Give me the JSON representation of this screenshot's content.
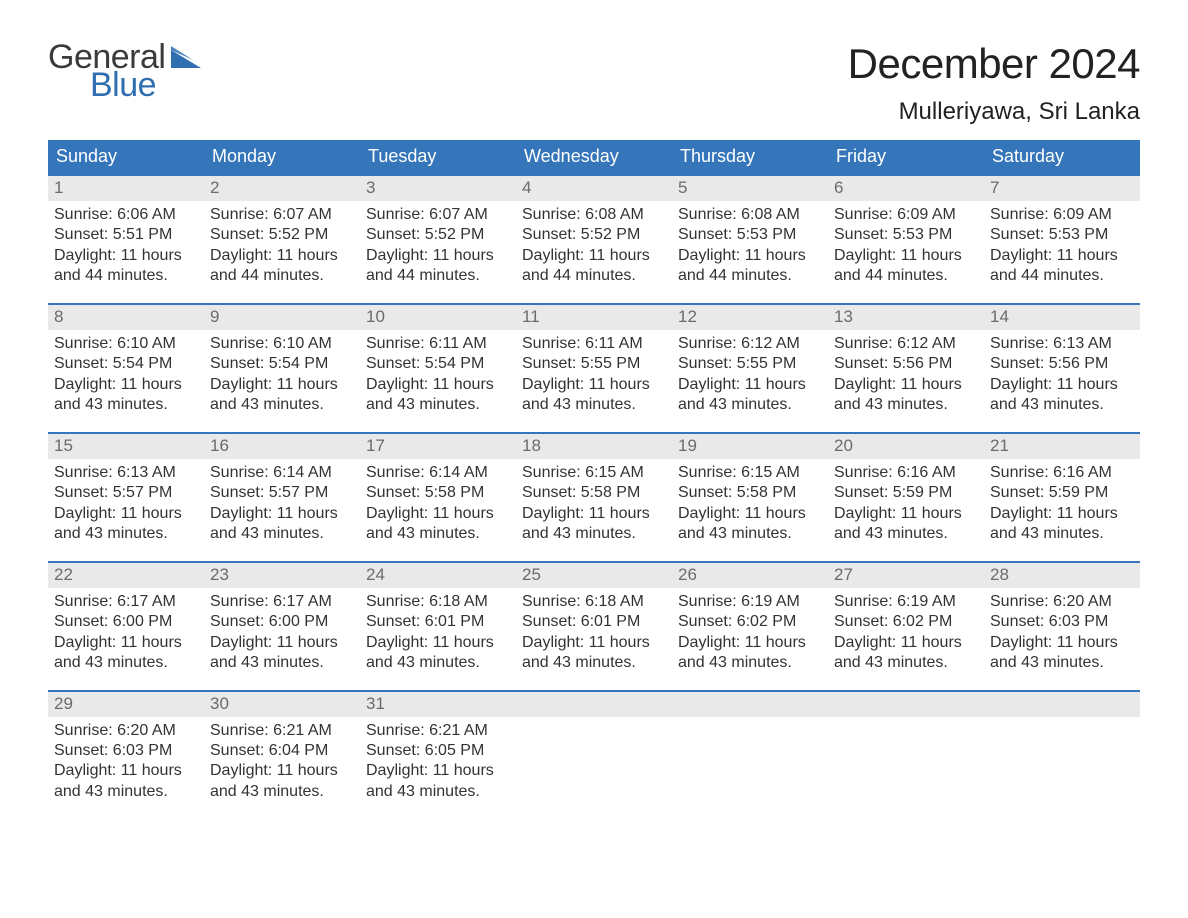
{
  "brand": {
    "word1": "General",
    "word2": "Blue",
    "flag_color": "#2f6fb0"
  },
  "header": {
    "month_title": "December 2024",
    "location": "Mulleriyawa, Sri Lanka"
  },
  "theme": {
    "header_bg": "#3576ba",
    "header_text": "#ffffff",
    "daynum_bg": "#e9e9e9",
    "daynum_text": "#6b6b6b",
    "body_text": "#333333",
    "week_border": "#3576ba",
    "page_bg": "#ffffff"
  },
  "weekdays": [
    "Sunday",
    "Monday",
    "Tuesday",
    "Wednesday",
    "Thursday",
    "Friday",
    "Saturday"
  ],
  "labels": {
    "sunrise": "Sunrise:",
    "sunset": "Sunset:",
    "daylight": "Daylight:"
  },
  "days": [
    {
      "n": 1,
      "sunrise": "6:06 AM",
      "sunset": "5:51 PM",
      "daylight": "11 hours and 44 minutes."
    },
    {
      "n": 2,
      "sunrise": "6:07 AM",
      "sunset": "5:52 PM",
      "daylight": "11 hours and 44 minutes."
    },
    {
      "n": 3,
      "sunrise": "6:07 AM",
      "sunset": "5:52 PM",
      "daylight": "11 hours and 44 minutes."
    },
    {
      "n": 4,
      "sunrise": "6:08 AM",
      "sunset": "5:52 PM",
      "daylight": "11 hours and 44 minutes."
    },
    {
      "n": 5,
      "sunrise": "6:08 AM",
      "sunset": "5:53 PM",
      "daylight": "11 hours and 44 minutes."
    },
    {
      "n": 6,
      "sunrise": "6:09 AM",
      "sunset": "5:53 PM",
      "daylight": "11 hours and 44 minutes."
    },
    {
      "n": 7,
      "sunrise": "6:09 AM",
      "sunset": "5:53 PM",
      "daylight": "11 hours and 44 minutes."
    },
    {
      "n": 8,
      "sunrise": "6:10 AM",
      "sunset": "5:54 PM",
      "daylight": "11 hours and 43 minutes."
    },
    {
      "n": 9,
      "sunrise": "6:10 AM",
      "sunset": "5:54 PM",
      "daylight": "11 hours and 43 minutes."
    },
    {
      "n": 10,
      "sunrise": "6:11 AM",
      "sunset": "5:54 PM",
      "daylight": "11 hours and 43 minutes."
    },
    {
      "n": 11,
      "sunrise": "6:11 AM",
      "sunset": "5:55 PM",
      "daylight": "11 hours and 43 minutes."
    },
    {
      "n": 12,
      "sunrise": "6:12 AM",
      "sunset": "5:55 PM",
      "daylight": "11 hours and 43 minutes."
    },
    {
      "n": 13,
      "sunrise": "6:12 AM",
      "sunset": "5:56 PM",
      "daylight": "11 hours and 43 minutes."
    },
    {
      "n": 14,
      "sunrise": "6:13 AM",
      "sunset": "5:56 PM",
      "daylight": "11 hours and 43 minutes."
    },
    {
      "n": 15,
      "sunrise": "6:13 AM",
      "sunset": "5:57 PM",
      "daylight": "11 hours and 43 minutes."
    },
    {
      "n": 16,
      "sunrise": "6:14 AM",
      "sunset": "5:57 PM",
      "daylight": "11 hours and 43 minutes."
    },
    {
      "n": 17,
      "sunrise": "6:14 AM",
      "sunset": "5:58 PM",
      "daylight": "11 hours and 43 minutes."
    },
    {
      "n": 18,
      "sunrise": "6:15 AM",
      "sunset": "5:58 PM",
      "daylight": "11 hours and 43 minutes."
    },
    {
      "n": 19,
      "sunrise": "6:15 AM",
      "sunset": "5:58 PM",
      "daylight": "11 hours and 43 minutes."
    },
    {
      "n": 20,
      "sunrise": "6:16 AM",
      "sunset": "5:59 PM",
      "daylight": "11 hours and 43 minutes."
    },
    {
      "n": 21,
      "sunrise": "6:16 AM",
      "sunset": "5:59 PM",
      "daylight": "11 hours and 43 minutes."
    },
    {
      "n": 22,
      "sunrise": "6:17 AM",
      "sunset": "6:00 PM",
      "daylight": "11 hours and 43 minutes."
    },
    {
      "n": 23,
      "sunrise": "6:17 AM",
      "sunset": "6:00 PM",
      "daylight": "11 hours and 43 minutes."
    },
    {
      "n": 24,
      "sunrise": "6:18 AM",
      "sunset": "6:01 PM",
      "daylight": "11 hours and 43 minutes."
    },
    {
      "n": 25,
      "sunrise": "6:18 AM",
      "sunset": "6:01 PM",
      "daylight": "11 hours and 43 minutes."
    },
    {
      "n": 26,
      "sunrise": "6:19 AM",
      "sunset": "6:02 PM",
      "daylight": "11 hours and 43 minutes."
    },
    {
      "n": 27,
      "sunrise": "6:19 AM",
      "sunset": "6:02 PM",
      "daylight": "11 hours and 43 minutes."
    },
    {
      "n": 28,
      "sunrise": "6:20 AM",
      "sunset": "6:03 PM",
      "daylight": "11 hours and 43 minutes."
    },
    {
      "n": 29,
      "sunrise": "6:20 AM",
      "sunset": "6:03 PM",
      "daylight": "11 hours and 43 minutes."
    },
    {
      "n": 30,
      "sunrise": "6:21 AM",
      "sunset": "6:04 PM",
      "daylight": "11 hours and 43 minutes."
    },
    {
      "n": 31,
      "sunrise": "6:21 AM",
      "sunset": "6:05 PM",
      "daylight": "11 hours and 43 minutes."
    }
  ],
  "grid": {
    "leading_blanks": 0,
    "total_cells": 35
  }
}
